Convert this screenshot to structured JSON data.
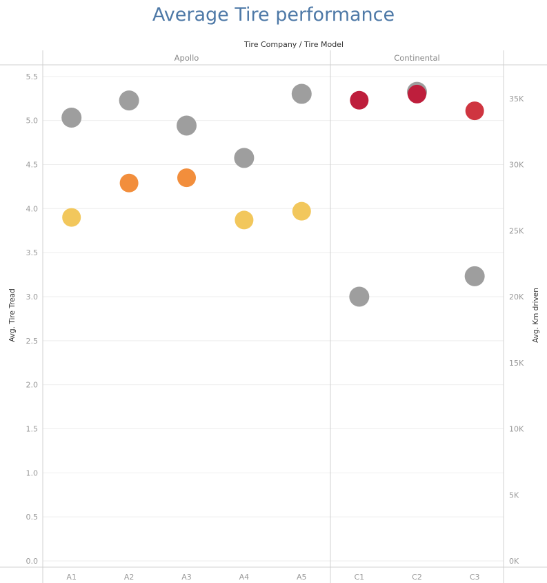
{
  "chart_data": {
    "type": "scatter",
    "title": "Average Tire performance",
    "column_header": "Tire Company  /  Tire Model",
    "left_axis": {
      "label": "Avg. Tire Tread",
      "range": [
        0,
        5.7
      ],
      "ticks": [
        "0.0",
        "0.5",
        "1.0",
        "1.5",
        "2.0",
        "2.5",
        "3.0",
        "3.5",
        "4.0",
        "4.5",
        "5.0",
        "5.5"
      ],
      "tick_values": [
        0,
        0.5,
        1,
        1.5,
        2,
        2.5,
        3,
        3.5,
        4,
        4.5,
        5,
        5.5
      ]
    },
    "right_axis": {
      "label": "Avg. Km driven",
      "range": [
        0,
        38000
      ],
      "ticks": [
        "0K",
        "5K",
        "10K",
        "15K",
        "20K",
        "25K",
        "30K",
        "35K"
      ],
      "tick_values": [
        0,
        5000,
        10000,
        15000,
        20000,
        25000,
        30000,
        35000
      ]
    },
    "groups": [
      {
        "name": "Apollo",
        "models": [
          "A1",
          "A2",
          "A3",
          "A4",
          "A5"
        ]
      },
      {
        "name": "Continental",
        "models": [
          "C1",
          "C2",
          "C3"
        ]
      }
    ],
    "tread_points": [
      {
        "model": "A1",
        "value": 3.9,
        "color": "#f2c75c"
      },
      {
        "model": "A2",
        "value": 4.29,
        "color": "#f28e3c"
      },
      {
        "model": "A3",
        "value": 4.35,
        "color": "#f28e3c"
      },
      {
        "model": "A4",
        "value": 3.87,
        "color": "#f2c75c"
      },
      {
        "model": "A5",
        "value": 3.97,
        "color": "#f2c75c"
      },
      {
        "model": "C1",
        "value": 5.23,
        "color": "#be1e3c"
      },
      {
        "model": "C2",
        "value": 5.3,
        "color": "#be1e3c"
      },
      {
        "model": "C3",
        "value": 5.11,
        "color": "#cf3540"
      }
    ],
    "km_points": [
      {
        "model": "A1",
        "value": 33550,
        "color": "#999999"
      },
      {
        "model": "A2",
        "value": 34850,
        "color": "#999999"
      },
      {
        "model": "A3",
        "value": 32950,
        "color": "#999999"
      },
      {
        "model": "A4",
        "value": 30500,
        "color": "#999999"
      },
      {
        "model": "A5",
        "value": 35350,
        "color": "#999999"
      },
      {
        "model": "C1",
        "value": 20000,
        "color": "#999999"
      },
      {
        "model": "C2",
        "value": 35500,
        "color": "#999999"
      },
      {
        "model": "C3",
        "value": 21550,
        "color": "#999999"
      }
    ]
  }
}
